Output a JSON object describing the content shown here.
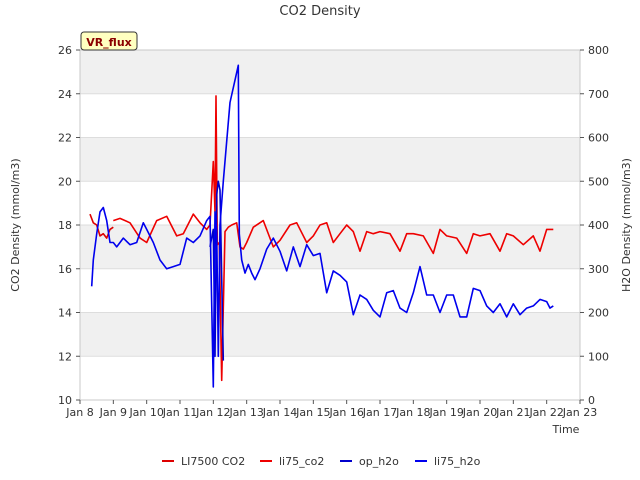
{
  "chart_data": {
    "type": "line",
    "title": "CO2 Density",
    "badge": "VR_flux",
    "xlabel": "Time",
    "ylabel_left": "CO2 Density (mmol/m3)",
    "ylabel_right": "H2O Density (mmol/m3)",
    "xlim": [
      8,
      23
    ],
    "ylim_left": [
      10,
      26
    ],
    "ylim_right": [
      0,
      800
    ],
    "x_ticks": [
      8,
      9,
      10,
      11,
      12,
      13,
      14,
      15,
      16,
      17,
      18,
      19,
      20,
      21,
      22,
      23
    ],
    "x_tick_labels": [
      "Jan 8",
      "Jan 9",
      "Jan 10",
      "Jan 11",
      "Jan 12",
      "Jan 13",
      "Jan 14",
      "Jan 15",
      "Jan 16",
      "Jan 17",
      "Jan 18",
      "Jan 19",
      "Jan 20",
      "Jan 21",
      "Jan 22",
      "Jan 23"
    ],
    "y_ticks_left": [
      10,
      12,
      14,
      16,
      18,
      20,
      22,
      24,
      26
    ],
    "y_ticks_right": [
      0,
      100,
      200,
      300,
      400,
      500,
      600,
      700,
      800
    ],
    "grid": true,
    "legend_position": "bottom-center",
    "series": [
      {
        "name": "LI7500 CO2",
        "axis": "left",
        "color": "#dd0000",
        "x": [
          8.3,
          8.4,
          8.5,
          8.6,
          8.7,
          8.8,
          8.9,
          9.0
        ],
        "values": [
          18.5,
          18.1,
          18.0,
          17.5,
          17.6,
          17.4,
          17.8,
          17.9
        ]
      },
      {
        "name": "li75_co2",
        "axis": "left",
        "color": "#ee0000",
        "x": [
          9.0,
          9.2,
          9.5,
          9.8,
          10.0,
          10.3,
          10.6,
          10.9,
          11.1,
          11.4,
          11.6,
          11.8,
          11.9,
          12.0,
          12.05,
          12.08,
          12.12,
          12.18,
          12.25,
          12.35,
          12.45,
          12.55,
          12.7,
          12.8,
          12.9,
          13.0,
          13.2,
          13.5,
          13.8,
          14.0,
          14.3,
          14.5,
          14.8,
          15.0,
          15.2,
          15.4,
          15.6,
          15.8,
          16.0,
          16.2,
          16.4,
          16.6,
          16.8,
          17.0,
          17.3,
          17.6,
          17.8,
          18.0,
          18.3,
          18.6,
          18.8,
          19.0,
          19.3,
          19.6,
          19.8,
          20.0,
          20.3,
          20.6,
          20.8,
          21.0,
          21.3,
          21.6,
          21.8,
          22.0,
          22.2
        ],
        "values": [
          18.2,
          18.3,
          18.1,
          17.4,
          17.2,
          18.2,
          18.4,
          17.5,
          17.6,
          18.5,
          18.1,
          17.8,
          18.0,
          20.9,
          18.6,
          23.9,
          17.1,
          17.2,
          10.9,
          17.7,
          17.9,
          18.0,
          18.1,
          17.0,
          16.9,
          17.2,
          17.9,
          18.2,
          17.0,
          17.3,
          18.0,
          18.1,
          17.2,
          17.5,
          18.0,
          18.1,
          17.2,
          17.6,
          18.0,
          17.7,
          16.8,
          17.7,
          17.6,
          17.7,
          17.6,
          16.8,
          17.6,
          17.6,
          17.5,
          16.7,
          17.8,
          17.5,
          17.4,
          16.7,
          17.6,
          17.5,
          17.6,
          16.8,
          17.6,
          17.5,
          17.1,
          17.5,
          16.8,
          17.8,
          17.8
        ]
      },
      {
        "name": "op_h2o",
        "axis": "right",
        "color": "#0000cc",
        "x": [
          11.9,
          12.0,
          12.05,
          12.1,
          12.15,
          12.2,
          12.3
        ],
        "values": [
          350,
          390,
          100,
          470,
          500,
          480,
          90
        ]
      },
      {
        "name": "li75_h2o",
        "axis": "right",
        "color": "#0000ee",
        "x": [
          8.35,
          8.4,
          8.5,
          8.6,
          8.7,
          8.8,
          8.9,
          9.0,
          9.1,
          9.3,
          9.5,
          9.7,
          9.9,
          10.0,
          10.2,
          10.4,
          10.6,
          10.8,
          11.0,
          11.2,
          11.4,
          11.6,
          11.8,
          11.9,
          12.0,
          12.05,
          12.1,
          12.15,
          12.2,
          12.3,
          12.5,
          12.75,
          12.78,
          12.85,
          12.95,
          13.05,
          13.15,
          13.25,
          13.4,
          13.6,
          13.8,
          14.0,
          14.2,
          14.4,
          14.6,
          14.8,
          15.0,
          15.2,
          15.4,
          15.6,
          15.8,
          16.0,
          16.2,
          16.4,
          16.6,
          16.8,
          17.0,
          17.2,
          17.4,
          17.6,
          17.8,
          18.0,
          18.2,
          18.4,
          18.6,
          18.8,
          19.0,
          19.2,
          19.4,
          19.6,
          19.8,
          20.0,
          20.2,
          20.4,
          20.6,
          20.8,
          21.0,
          21.2,
          21.4,
          21.6,
          21.8,
          22.0,
          22.1,
          22.2
        ],
        "values": [
          260,
          320,
          380,
          430,
          440,
          410,
          360,
          360,
          350,
          370,
          355,
          360,
          405,
          390,
          360,
          320,
          300,
          305,
          310,
          370,
          360,
          375,
          410,
          420,
          30,
          430,
          390,
          100,
          400,
          500,
          680,
          765,
          380,
          320,
          290,
          310,
          290,
          275,
          300,
          345,
          370,
          340,
          295,
          350,
          305,
          355,
          330,
          335,
          245,
          295,
          285,
          270,
          195,
          240,
          230,
          205,
          190,
          245,
          250,
          210,
          200,
          245,
          305,
          240,
          240,
          200,
          240,
          240,
          190,
          190,
          255,
          250,
          215,
          200,
          220,
          190,
          220,
          195,
          210,
          215,
          230,
          225,
          210,
          215
        ]
      }
    ]
  }
}
